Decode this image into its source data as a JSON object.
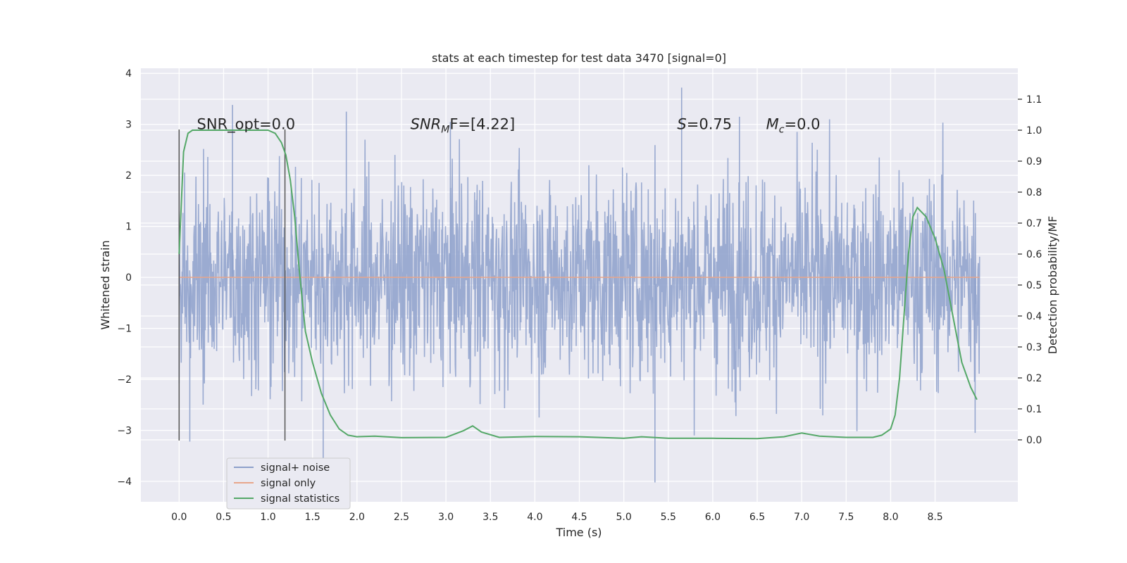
{
  "chart_data": {
    "type": "line",
    "title": "stats at each timestep for test data 3470 [signal=0]",
    "xlabel": "Time (s)",
    "ylabel": "Whitened strain",
    "y2label": "Detection probability/MF",
    "xlim": [
      -0.43,
      9.43
    ],
    "ylim": [
      -4.4,
      4.1
    ],
    "y2lim": [
      -0.2,
      1.2
    ],
    "xticks": [
      0.0,
      0.5,
      1.0,
      1.5,
      2.0,
      2.5,
      3.0,
      3.5,
      4.0,
      4.5,
      5.0,
      5.5,
      6.0,
      6.5,
      7.0,
      7.5,
      8.0,
      8.5
    ],
    "xtick_labels": [
      "0.0",
      "0.5",
      "1.0",
      "1.5",
      "2.0",
      "2.5",
      "3.0",
      "3.5",
      "4.0",
      "4.5",
      "5.0",
      "5.5",
      "6.0",
      "6.5",
      "7.0",
      "7.5",
      "8.0",
      "8.5"
    ],
    "yticks": [
      -4,
      -3,
      -2,
      -1,
      0,
      1,
      2,
      3,
      4
    ],
    "ytick_labels": [
      "−4",
      "−3",
      "−2",
      "−1",
      "0",
      "1",
      "2",
      "3",
      "4"
    ],
    "y2ticks": [
      0.0,
      0.1,
      0.2,
      0.3,
      0.4,
      0.5,
      0.6,
      0.7,
      0.8,
      0.9,
      1.0,
      1.1
    ],
    "y2tick_labels": [
      "0.0",
      "0.1",
      "0.2",
      "0.3",
      "0.4",
      "0.5",
      "0.6",
      "0.7",
      "0.8",
      "0.9",
      "1.0",
      "1.1"
    ],
    "grid": true,
    "legend_position": "lower-left",
    "series": [
      {
        "name": "signal+ noise",
        "axis": "left",
        "color": "#8da0cb",
        "x_range": [
          0.0,
          9.0
        ],
        "description_stats": {
          "typical_amplitude": 1.0,
          "max": 3.7,
          "min": -4.0
        },
        "extremes": [
          {
            "x": 0.6,
            "y": 3.38
          },
          {
            "x": 0.12,
            "y": -3.22
          },
          {
            "x": 1.62,
            "y": -3.6
          },
          {
            "x": 5.35,
            "y": -4.02
          },
          {
            "x": 5.65,
            "y": 3.72
          },
          {
            "x": 1.88,
            "y": 3.25
          },
          {
            "x": 8.95,
            "y": -3.05
          },
          {
            "x": 3.05,
            "y": 3.05
          },
          {
            "x": 6.3,
            "y": 3.15
          }
        ]
      },
      {
        "name": "signal only",
        "axis": "left",
        "color": "#e8a68b",
        "x": [
          0.0,
          9.0
        ],
        "y": [
          0.0,
          0.0
        ]
      },
      {
        "name": "signal statistics",
        "axis": "right",
        "color": "#55a868",
        "x": [
          0.0,
          0.05,
          0.1,
          0.15,
          0.25,
          0.5,
          0.8,
          1.0,
          1.08,
          1.15,
          1.2,
          1.25,
          1.3,
          1.35,
          1.42,
          1.5,
          1.6,
          1.7,
          1.8,
          1.9,
          2.0,
          2.2,
          2.5,
          3.0,
          3.2,
          3.3,
          3.4,
          3.6,
          4.0,
          4.5,
          5.0,
          5.2,
          5.5,
          6.0,
          6.5,
          6.8,
          7.0,
          7.2,
          7.5,
          7.8,
          7.9,
          8.0,
          8.05,
          8.1,
          8.15,
          8.2,
          8.25,
          8.3,
          8.4,
          8.5,
          8.6,
          8.7,
          8.8,
          8.9,
          8.97
        ],
        "y": [
          0.6,
          0.93,
          0.99,
          1.0,
          1.0,
          1.0,
          1.0,
          1.0,
          0.99,
          0.96,
          0.92,
          0.84,
          0.72,
          0.55,
          0.35,
          0.25,
          0.15,
          0.08,
          0.035,
          0.015,
          0.01,
          0.012,
          0.007,
          0.008,
          0.03,
          0.045,
          0.025,
          0.008,
          0.011,
          0.01,
          0.005,
          0.01,
          0.005,
          0.005,
          0.004,
          0.01,
          0.022,
          0.012,
          0.008,
          0.008,
          0.015,
          0.035,
          0.08,
          0.2,
          0.4,
          0.6,
          0.72,
          0.75,
          0.72,
          0.65,
          0.55,
          0.4,
          0.25,
          0.17,
          0.13
        ]
      }
    ],
    "vlines": [
      0.0,
      1.19
    ],
    "annotations": [
      {
        "text": "SNR_opt=0.0",
        "x": 0.2,
        "y": 3.0
      },
      {
        "text_main": "SNR",
        "text_sub": "M",
        "text_rest": "F=[4.22]",
        "x": 2.6,
        "y": 3.0
      },
      {
        "text_main": "S",
        "text_rest": "=0.75",
        "x": 5.6,
        "y": 3.0
      },
      {
        "text_main": "M",
        "text_sub": "c",
        "text_rest": "=0.0",
        "x": 6.6,
        "y": 3.0
      }
    ]
  }
}
